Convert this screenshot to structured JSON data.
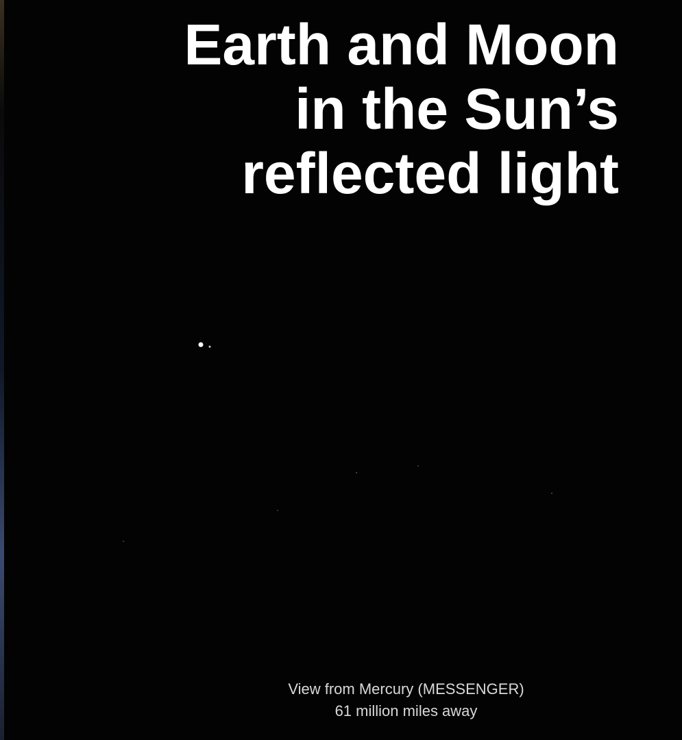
{
  "title": {
    "lines": [
      "Earth and Moon",
      "in the Sun’s",
      "reflected light"
    ]
  },
  "caption": {
    "lines": [
      "View from Mercury (MESSENGER)",
      "61 million miles away"
    ]
  }
}
